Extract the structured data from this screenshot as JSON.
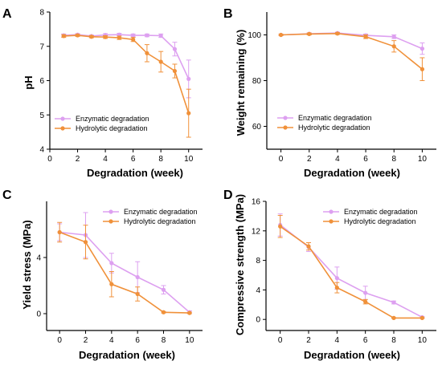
{
  "colors": {
    "enzymatic": "#dda0f0",
    "hydrolytic": "#f0913a",
    "axis": "#000000"
  },
  "chart_data": [
    {
      "panel": "A",
      "type": "line",
      "xlabel": "Degradation (week)",
      "ylabel": "pH",
      "xlim": [
        0,
        11
      ],
      "ylim": [
        4,
        8
      ],
      "xticks": [
        0,
        2,
        4,
        6,
        8,
        10
      ],
      "yticks": [
        4,
        5,
        6,
        7,
        8
      ],
      "legend_position": "bottom-left",
      "series": [
        {
          "name": "Enzymatic degradation",
          "color_key": "enzymatic",
          "x": [
            1,
            2,
            3,
            4,
            5,
            6,
            7,
            8,
            9,
            10
          ],
          "y": [
            7.32,
            7.34,
            7.3,
            7.33,
            7.34,
            7.32,
            7.32,
            7.31,
            6.92,
            6.05
          ],
          "err": [
            0.04,
            0.03,
            0.03,
            0.04,
            0.04,
            0.04,
            0.04,
            0.05,
            0.2,
            0.55
          ]
        },
        {
          "name": "Hydrolytic degradation",
          "color_key": "hydrolytic",
          "x": [
            1,
            2,
            3,
            4,
            5,
            6,
            7,
            8,
            9,
            10
          ],
          "y": [
            7.3,
            7.32,
            7.28,
            7.27,
            7.25,
            7.2,
            6.8,
            6.55,
            6.28,
            5.05
          ],
          "err": [
            0.04,
            0.03,
            0.03,
            0.04,
            0.05,
            0.06,
            0.25,
            0.3,
            0.2,
            0.7
          ]
        }
      ]
    },
    {
      "panel": "B",
      "type": "line",
      "xlabel": "Degradation (week)",
      "ylabel": "Weight remaining (%)",
      "xlim": [
        -1,
        11
      ],
      "ylim": [
        50,
        110
      ],
      "xticks": [
        0,
        2,
        4,
        6,
        8,
        10
      ],
      "yticks": [
        60,
        80,
        100
      ],
      "legend_position": "bottom-left",
      "series": [
        {
          "name": "Enzymatic degradation",
          "color_key": "enzymatic",
          "x": [
            0,
            2,
            4,
            6,
            8,
            10
          ],
          "y": [
            100,
            100.5,
            100.8,
            99.8,
            99.2,
            94
          ],
          "err": [
            0.3,
            0.4,
            0.4,
            0.6,
            0.8,
            2.5
          ]
        },
        {
          "name": "Hydrolytic degradation",
          "color_key": "hydrolytic",
          "x": [
            0,
            2,
            4,
            6,
            8,
            10
          ],
          "y": [
            100,
            100.4,
            100.6,
            99.2,
            95,
            85
          ],
          "err": [
            0.3,
            0.4,
            0.4,
            0.8,
            2.5,
            5
          ]
        }
      ]
    },
    {
      "panel": "C",
      "type": "line",
      "xlabel": "Degradation (week)",
      "ylabel": "Yield stress (MPa)",
      "xlim": [
        -1,
        11
      ],
      "ylim": [
        -1.2,
        8
      ],
      "xticks": [
        0,
        2,
        4,
        6,
        8,
        10
      ],
      "yticks": [
        0,
        4
      ],
      "legend_position": "top-right",
      "series": [
        {
          "name": "Enzymatic degradation",
          "color_key": "enzymatic",
          "x": [
            0,
            2,
            4,
            6,
            8,
            10
          ],
          "y": [
            5.8,
            5.6,
            3.6,
            2.6,
            1.7,
            0.1
          ],
          "err": [
            0.6,
            1.6,
            0.7,
            1.1,
            0.3,
            0.1
          ]
        },
        {
          "name": "Hydrolytic degradation",
          "color_key": "hydrolytic",
          "x": [
            0,
            2,
            4,
            6,
            8,
            10
          ],
          "y": [
            5.8,
            5.1,
            2.1,
            1.4,
            0.1,
            0.05
          ],
          "err": [
            0.7,
            1.2,
            0.9,
            0.5,
            0.05,
            0.05
          ]
        }
      ]
    },
    {
      "panel": "D",
      "type": "line",
      "xlabel": "Degradation (week)",
      "ylabel": "Compressive strength (MPa)",
      "xlim": [
        -1,
        11
      ],
      "ylim": [
        -1.5,
        16
      ],
      "xticks": [
        0,
        2,
        4,
        6,
        8,
        10
      ],
      "yticks": [
        0,
        4,
        8,
        12,
        16
      ],
      "legend_position": "top-right",
      "series": [
        {
          "name": "Enzymatic degradation",
          "color_key": "enzymatic",
          "x": [
            0,
            2,
            4,
            6,
            8,
            10
          ],
          "y": [
            12.8,
            9.8,
            5.6,
            3.6,
            2.3,
            0.3
          ],
          "err": [
            1.5,
            0.6,
            1.5,
            0.9,
            0.2,
            0.1
          ]
        },
        {
          "name": "Hydrolytic degradation",
          "color_key": "hydrolytic",
          "x": [
            0,
            2,
            4,
            6,
            8,
            10
          ],
          "y": [
            12.6,
            9.9,
            4.3,
            2.4,
            0.2,
            0.2
          ],
          "err": [
            1.5,
            0.5,
            0.7,
            0.3,
            0.05,
            0.05
          ]
        }
      ]
    }
  ]
}
